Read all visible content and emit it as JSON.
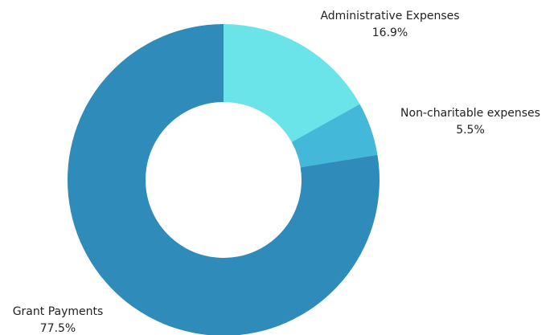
{
  "chart_data": {
    "type": "donut",
    "categories": [
      "Administrative Expenses",
      "Non-charitable expenses",
      "Grant Payments"
    ],
    "values": [
      16.9,
      5.5,
      77.5
    ],
    "value_labels": [
      "16.9%",
      "5.5%",
      "77.5%"
    ],
    "colors": [
      "#6ae4e8",
      "#44b8d8",
      "#2e8bba"
    ]
  }
}
